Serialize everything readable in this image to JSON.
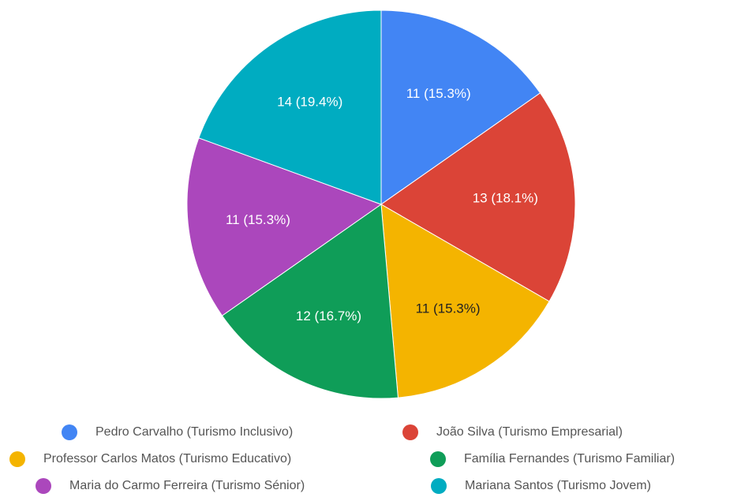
{
  "chart_data": {
    "type": "pie",
    "categories": [
      "Pedro Carvalho (Turismo Inclusivo)",
      "João Silva (Turismo Empresarial)",
      "Professor Carlos Matos (Turismo Educativo)",
      "Família Fernandes (Turismo Familiar)",
      "Maria do Carmo Ferreira (Turismo Sénior)",
      "Mariana Santos (Turismo Jovem)"
    ],
    "values": [
      11,
      13,
      11,
      12,
      11,
      14
    ],
    "value_labels": [
      "11 (15.3%)",
      "13 (18.1%)",
      "11 (15.3%)",
      "12 (16.7%)",
      "11 (15.3%)",
      "14 (19.4%)"
    ],
    "colors": [
      "#4285f4",
      "#db4437",
      "#f4b400",
      "#0f9d58",
      "#ab47bc",
      "#00acc1"
    ]
  }
}
